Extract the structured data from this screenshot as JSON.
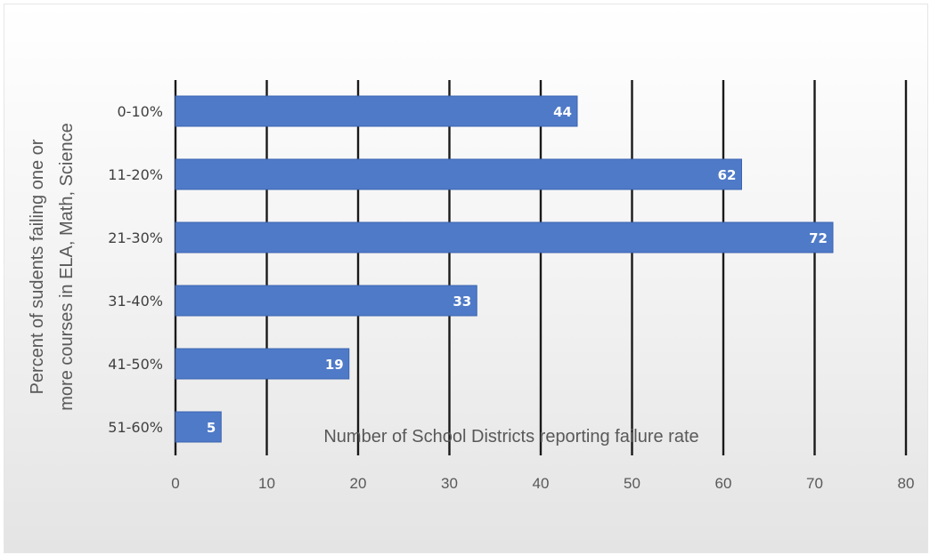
{
  "chart_data": {
    "type": "bar",
    "orientation": "horizontal",
    "categories": [
      "0-10%",
      "11-20%",
      "21-30%",
      "31-40%",
      "41-50%",
      "51-60%"
    ],
    "values": [
      44,
      62,
      72,
      33,
      19,
      5
    ],
    "title": "",
    "xlabel": "Number of School Districts reporting failure rate",
    "ylabel_lines": [
      "Percent of sudents failing one or",
      "more courses in ELA, Math, Science"
    ],
    "xlim": [
      0,
      80
    ],
    "xticks": [
      0,
      10,
      20,
      30,
      40,
      50,
      60,
      70,
      80
    ],
    "grid": true,
    "data_labels": true,
    "colors": {
      "bar": "#4f7ac7",
      "bar_edge": "#3b64b0",
      "grid": "#1a1a1a",
      "label": "#ffffff"
    }
  }
}
